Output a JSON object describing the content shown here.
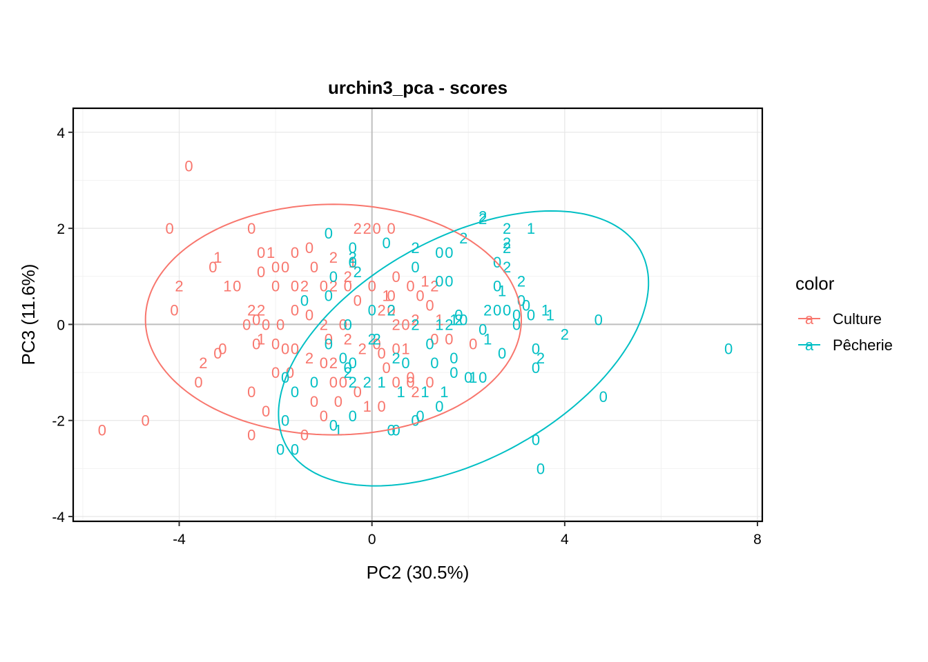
{
  "chart_data": {
    "type": "scatter",
    "title": "urchin3_pca - scores",
    "xlabel": "PC2 (30.5%)",
    "ylabel": "PC3 (11.6%)",
    "xlim": [
      -6.2,
      8.1
    ],
    "ylim": [
      -4.1,
      4.5
    ],
    "xticks": [
      -4,
      0,
      4,
      8
    ],
    "yticks": [
      -4,
      -2,
      0,
      2,
      4
    ],
    "xtick_labels": [
      "-4",
      "0",
      "4",
      "8"
    ],
    "ytick_labels": [
      "-4",
      "-2",
      "0",
      "2",
      "4"
    ],
    "grid": true,
    "reference_lines": {
      "x": 0,
      "y": 0
    },
    "legend": {
      "title": "color",
      "placement": "right",
      "key_glyph": "a"
    },
    "series": [
      {
        "name": "Culture",
        "color": "#F8766D",
        "ellipse": {
          "cx": -0.8,
          "cy": 0.1,
          "rx": 3.9,
          "ry": 2.4,
          "angle_deg": 0
        },
        "points": [
          [
            -3.8,
            3.3,
            "0"
          ],
          [
            -4.2,
            2.0,
            "0"
          ],
          [
            -5.6,
            -2.2,
            "0"
          ],
          [
            -4.7,
            -2.0,
            "0"
          ],
          [
            -2.5,
            -2.3,
            "0"
          ],
          [
            -2.2,
            -1.8,
            "0"
          ],
          [
            -1.4,
            -2.3,
            "0"
          ],
          [
            -1.0,
            -1.9,
            "0"
          ],
          [
            -0.7,
            -1.6,
            "0"
          ],
          [
            -2.5,
            2.0,
            "0"
          ],
          [
            -2.3,
            1.5,
            "0"
          ],
          [
            -2.1,
            1.5,
            "1"
          ],
          [
            -1.6,
            1.5,
            "0"
          ],
          [
            -1.3,
            1.6,
            "0"
          ],
          [
            -1.2,
            1.2,
            "0"
          ],
          [
            -0.8,
            1.4,
            "2"
          ],
          [
            -0.3,
            2.0,
            "2"
          ],
          [
            -0.1,
            2.0,
            "2"
          ],
          [
            0.4,
            2.0,
            "0"
          ],
          [
            0.1,
            2.0,
            "0"
          ],
          [
            -3.2,
            1.4,
            "1"
          ],
          [
            -3.3,
            1.2,
            "0"
          ],
          [
            -4.0,
            0.8,
            "2"
          ],
          [
            -3.0,
            0.8,
            "1"
          ],
          [
            -2.8,
            0.8,
            "0"
          ],
          [
            -2.3,
            1.1,
            "0"
          ],
          [
            -2.0,
            1.2,
            "0"
          ],
          [
            -1.8,
            1.2,
            "0"
          ],
          [
            -1.6,
            0.8,
            "0"
          ],
          [
            -2.0,
            0.8,
            "0"
          ],
          [
            -1.4,
            0.8,
            "2"
          ],
          [
            -1.0,
            0.8,
            "0"
          ],
          [
            -0.8,
            0.8,
            "2"
          ],
          [
            -0.5,
            1.0,
            "2"
          ],
          [
            -0.4,
            1.3,
            "1"
          ],
          [
            -0.5,
            0.8,
            "0"
          ],
          [
            0.0,
            0.8,
            "0"
          ],
          [
            0.5,
            1.0,
            "0"
          ],
          [
            0.8,
            0.8,
            "0"
          ],
          [
            1.1,
            0.9,
            "1"
          ],
          [
            1.3,
            0.8,
            "2"
          ],
          [
            1.0,
            0.6,
            "0"
          ],
          [
            0.3,
            0.6,
            "1"
          ],
          [
            0.4,
            0.6,
            "0"
          ],
          [
            -4.1,
            0.3,
            "0"
          ],
          [
            -2.5,
            0.3,
            "2"
          ],
          [
            -2.3,
            0.3,
            "2"
          ],
          [
            -2.6,
            0.0,
            "0"
          ],
          [
            -2.4,
            0.1,
            "0"
          ],
          [
            -2.2,
            0.0,
            "0"
          ],
          [
            -1.9,
            0.0,
            "0"
          ],
          [
            -1.6,
            0.3,
            "0"
          ],
          [
            -1.3,
            0.2,
            "0"
          ],
          [
            -1.0,
            0.0,
            "2"
          ],
          [
            -0.6,
            0.0,
            "0"
          ],
          [
            -0.3,
            0.5,
            "0"
          ],
          [
            0.2,
            0.3,
            "2"
          ],
          [
            0.4,
            0.3,
            "0"
          ],
          [
            0.5,
            0.0,
            "2"
          ],
          [
            0.7,
            0.0,
            "0"
          ],
          [
            1.2,
            0.4,
            "0"
          ],
          [
            0.9,
            0.1,
            "2"
          ],
          [
            1.4,
            0.1,
            "1"
          ],
          [
            -3.1,
            -0.5,
            "0"
          ],
          [
            -3.2,
            -0.6,
            "0"
          ],
          [
            -3.5,
            -0.8,
            "2"
          ],
          [
            -3.6,
            -1.2,
            "0"
          ],
          [
            -2.4,
            -0.4,
            "0"
          ],
          [
            -2.3,
            -0.3,
            "1"
          ],
          [
            -2.0,
            -0.4,
            "0"
          ],
          [
            -1.6,
            -0.5,
            "0"
          ],
          [
            -1.3,
            -0.7,
            "2"
          ],
          [
            -1.0,
            -0.8,
            "0"
          ],
          [
            -0.8,
            -0.8,
            "2"
          ],
          [
            -0.5,
            -0.3,
            "2"
          ],
          [
            -0.2,
            -0.5,
            "2"
          ],
          [
            0.2,
            -0.6,
            "0"
          ],
          [
            0.5,
            -0.5,
            "0"
          ],
          [
            0.7,
            -0.5,
            "1"
          ],
          [
            1.3,
            -0.3,
            "0"
          ],
          [
            1.6,
            -0.3,
            "0"
          ],
          [
            2.1,
            -0.4,
            "0"
          ],
          [
            1.2,
            -1.2,
            "0"
          ],
          [
            -0.6,
            -1.2,
            "0"
          ],
          [
            -0.8,
            -1.2,
            "0"
          ],
          [
            -0.3,
            -1.4,
            "0"
          ],
          [
            0.2,
            -1.7,
            "0"
          ],
          [
            -0.1,
            -1.7,
            "1"
          ],
          [
            -2.5,
            -1.4,
            "0"
          ],
          [
            -2.0,
            -1.0,
            "0"
          ],
          [
            -1.8,
            -0.5,
            "0"
          ],
          [
            -0.9,
            -0.3,
            "0"
          ],
          [
            0.1,
            -0.4,
            "0"
          ],
          [
            0.3,
            -0.9,
            "0"
          ],
          [
            0.5,
            -1.2,
            "0"
          ],
          [
            0.8,
            -1.1,
            "0"
          ],
          [
            0.9,
            -1.4,
            "2"
          ],
          [
            -1.2,
            -1.6,
            "0"
          ],
          [
            -1.7,
            -1.0,
            "0"
          ],
          [
            0.8,
            -1.2,
            "0"
          ]
        ]
      },
      {
        "name": "Pêcherie",
        "color": "#00BFC4",
        "ellipse": {
          "cx": 1.9,
          "cy": -0.5,
          "rx": 4.2,
          "ry": 2.3,
          "angle_deg": 29
        },
        "points": [
          [
            2.3,
            2.2,
            "2"
          ],
          [
            2.3,
            2.25,
            "2"
          ],
          [
            2.8,
            2.0,
            "2"
          ],
          [
            3.3,
            2.0,
            "1"
          ],
          [
            1.9,
            1.8,
            "2"
          ],
          [
            2.8,
            1.7,
            "2"
          ],
          [
            2.8,
            1.6,
            "2"
          ],
          [
            0.3,
            1.7,
            "0"
          ],
          [
            0.9,
            1.6,
            "2"
          ],
          [
            1.4,
            1.5,
            "0"
          ],
          [
            1.6,
            1.5,
            "0"
          ],
          [
            -0.9,
            1.9,
            "0"
          ],
          [
            -0.4,
            1.6,
            "0"
          ],
          [
            -0.4,
            1.4,
            "2"
          ],
          [
            -0.4,
            1.3,
            "0"
          ],
          [
            -0.3,
            1.1,
            "2"
          ],
          [
            2.6,
            1.3,
            "0"
          ],
          [
            2.8,
            1.2,
            "2"
          ],
          [
            3.1,
            0.9,
            "2"
          ],
          [
            0.9,
            1.2,
            "0"
          ],
          [
            2.6,
            0.8,
            "0"
          ],
          [
            2.7,
            0.7,
            "1"
          ],
          [
            1.4,
            0.9,
            "0"
          ],
          [
            1.6,
            0.9,
            "0"
          ],
          [
            3.1,
            0.5,
            "0"
          ],
          [
            3.2,
            0.4,
            "0"
          ],
          [
            3.6,
            0.3,
            "1"
          ],
          [
            3.7,
            0.2,
            "1"
          ],
          [
            2.4,
            0.3,
            "2"
          ],
          [
            2.6,
            0.3,
            "0"
          ],
          [
            2.8,
            0.3,
            "0"
          ],
          [
            3.0,
            0.2,
            "0"
          ],
          [
            3.3,
            0.2,
            "0"
          ],
          [
            3.0,
            0.0,
            "0"
          ],
          [
            4.7,
            0.1,
            "0"
          ],
          [
            4.0,
            -0.2,
            "2"
          ],
          [
            7.4,
            -0.5,
            "0"
          ],
          [
            3.4,
            -0.5,
            "0"
          ],
          [
            3.5,
            -0.7,
            "2"
          ],
          [
            3.4,
            -0.9,
            "0"
          ],
          [
            4.8,
            -1.5,
            "0"
          ],
          [
            3.4,
            -2.4,
            "0"
          ],
          [
            3.5,
            -3.0,
            "0"
          ],
          [
            2.7,
            -0.6,
            "0"
          ],
          [
            2.4,
            -0.3,
            "1"
          ],
          [
            2.3,
            -0.1,
            "0"
          ],
          [
            1.9,
            0.1,
            "0"
          ],
          [
            1.8,
            0.2,
            "0"
          ],
          [
            1.8,
            0.1,
            "2"
          ],
          [
            1.7,
            0.1,
            "1"
          ],
          [
            1.4,
            0.0,
            "1"
          ],
          [
            1.6,
            0.0,
            "2"
          ],
          [
            1.2,
            -0.4,
            "0"
          ],
          [
            1.7,
            -0.7,
            "0"
          ],
          [
            1.7,
            -1.0,
            "0"
          ],
          [
            2.1,
            -1.1,
            "1"
          ],
          [
            2.3,
            -1.1,
            "0"
          ],
          [
            2.0,
            -1.1,
            "0"
          ],
          [
            0.4,
            0.3,
            "2"
          ],
          [
            0.0,
            0.3,
            "0"
          ],
          [
            0.9,
            0.0,
            "2"
          ],
          [
            1.3,
            -0.8,
            "0"
          ],
          [
            1.5,
            -1.4,
            "1"
          ],
          [
            1.1,
            -1.4,
            "1"
          ],
          [
            1.4,
            -1.7,
            "0"
          ],
          [
            1.0,
            -1.9,
            "0"
          ],
          [
            -0.4,
            -0.8,
            "0"
          ],
          [
            -0.6,
            -0.7,
            "0"
          ],
          [
            -0.9,
            -0.4,
            "0"
          ],
          [
            -0.5,
            0.0,
            "0"
          ],
          [
            -0.8,
            1.0,
            "0"
          ],
          [
            -1.4,
            0.5,
            "0"
          ],
          [
            -0.9,
            0.6,
            "0"
          ],
          [
            -0.5,
            -1.0,
            "2"
          ],
          [
            -0.4,
            -1.2,
            "2"
          ],
          [
            -1.2,
            -1.2,
            "0"
          ],
          [
            -1.6,
            -1.4,
            "0"
          ],
          [
            -1.8,
            -1.1,
            "0"
          ],
          [
            -1.9,
            -2.6,
            "0"
          ],
          [
            -1.6,
            -2.6,
            "0"
          ],
          [
            -1.8,
            -2.0,
            "0"
          ],
          [
            -0.8,
            -2.1,
            "0"
          ],
          [
            -0.7,
            -2.2,
            "1"
          ],
          [
            -0.4,
            -1.9,
            "0"
          ],
          [
            0.4,
            -2.2,
            "0"
          ],
          [
            0.9,
            -2.0,
            "0"
          ],
          [
            -0.1,
            -1.2,
            "2"
          ],
          [
            0.2,
            -1.2,
            "1"
          ],
          [
            0.6,
            -1.4,
            "1"
          ],
          [
            0.5,
            -0.7,
            "2"
          ],
          [
            0.7,
            -0.8,
            "0"
          ],
          [
            0.1,
            -0.3,
            "2"
          ],
          [
            0.0,
            -0.3,
            "2"
          ],
          [
            -0.5,
            -0.9,
            "0"
          ],
          [
            0.5,
            -2.2,
            "0"
          ]
        ]
      }
    ]
  }
}
